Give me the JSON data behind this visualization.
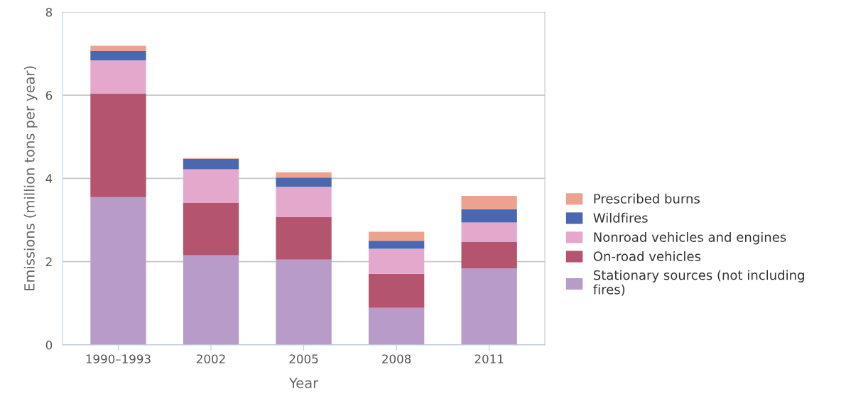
{
  "chart_data": {
    "type": "bar",
    "stacked": true,
    "xlabel": "Year",
    "ylabel": "Emissions (million tons per year)",
    "categories": [
      "1990–1993",
      "2002",
      "2005",
      "2008",
      "2011"
    ],
    "series": [
      {
        "name": "Stationary sources (not including fires)",
        "color": "#b89bc8",
        "values": [
          3.55,
          2.15,
          2.05,
          0.89,
          1.84
        ]
      },
      {
        "name": "On-road vehicles",
        "color": "#b4546f",
        "values": [
          2.49,
          1.27,
          1.02,
          0.82,
          0.63
        ]
      },
      {
        "name": "Nonroad vehicles and engines",
        "color": "#e3a8cb",
        "values": [
          0.8,
          0.8,
          0.73,
          0.6,
          0.47
        ]
      },
      {
        "name": "Wildfires",
        "color": "#4a68b0",
        "values": [
          0.22,
          0.25,
          0.22,
          0.19,
          0.32
        ]
      },
      {
        "name": "Prescribed burns",
        "color": "#eba38f",
        "values": [
          0.13,
          0.02,
          0.13,
          0.22,
          0.32
        ]
      }
    ],
    "ylim": [
      0,
      8
    ],
    "yticks": [
      0,
      2,
      4,
      6,
      8
    ],
    "grid": "y",
    "legend": "right"
  }
}
